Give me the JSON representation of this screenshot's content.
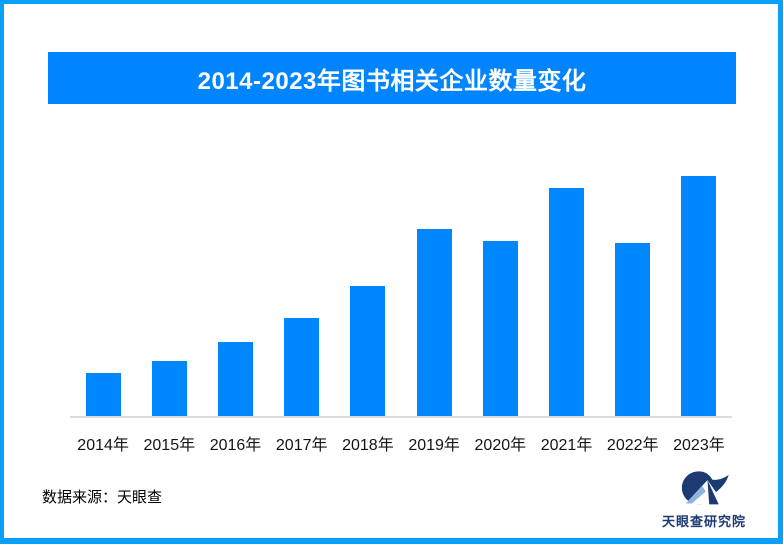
{
  "frame": {
    "border_color": "#09a0f9"
  },
  "banner": {
    "bg": "#0084ff",
    "text_color": "#ffffff"
  },
  "chart_data": {
    "type": "bar",
    "title": "2014-2023年图书相关企业数量变化",
    "categories": [
      "2014年",
      "2015年",
      "2016年",
      "2017年",
      "2018年",
      "2019年",
      "2020年",
      "2021年",
      "2022年",
      "2023年"
    ],
    "values": [
      18,
      23,
      31,
      41,
      54,
      78,
      73,
      95,
      72,
      100
    ],
    "values_are_relative_estimates": true,
    "ylim": [
      0,
      100
    ],
    "xlabel": "",
    "ylabel": "",
    "grid": false,
    "legend": "none",
    "data_labels": "none",
    "bar_color": "#0087fe",
    "axis_color": "#dcdcdc"
  },
  "footer": {
    "source": "数据来源：天眼查",
    "brand": "天眼查研究院",
    "brand_color": "#1d3a73",
    "logo_accent": "#8fb3de"
  }
}
